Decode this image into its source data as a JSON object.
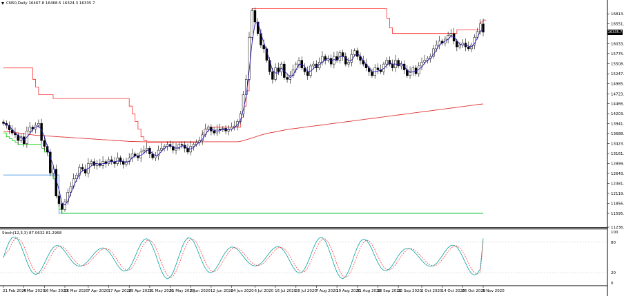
{
  "chart_window": {
    "symbol_line": "CN50,Daily  16467.8 16468.5 16324.3 16335.7",
    "menu_icon": "triangle-down-icon"
  },
  "indicator": {
    "label": "Stoch(12,3,3) 87.0632 81.2968"
  },
  "colors": {
    "background": "#ffffff",
    "candle": "#000000",
    "price_line": "#2a1bb3",
    "donchian_upper": "#ff2a2a",
    "donchian_lower": "#00d000",
    "long_channel": "#3a8fe0",
    "moving_average": "#e03030",
    "stoch_main": "#00a0a0",
    "stoch_signal": "#ff4040",
    "level_line": "#c8c8c8",
    "separator": "#000000"
  },
  "chart_data": {
    "type": "candlestick",
    "title": "CN50,Daily",
    "ohlc_header": {
      "open": 16467.8,
      "high": 16468.5,
      "low": 16324.3,
      "close": 16335.7
    },
    "ylim": [
      11236.5,
      17140
    ],
    "y_ticks": [
      "16813.5",
      "16551.5",
      "16033.5",
      "15775.5",
      "15508.5",
      "15247.5",
      "14985.5",
      "14723.5",
      "14466.5",
      "14203.5",
      "13941.5",
      "13688.5",
      "13423.5",
      "13161.5",
      "12899.5",
      "12643.5",
      "12381.5",
      "12119.5",
      "11856.5",
      "11595.5",
      "11236.5"
    ],
    "current_price_label": "16335.7",
    "x_labels": [
      "21 Feb 2020",
      "4 Mar 2020",
      "16 Mar 2020",
      "26 Mar 2020",
      "7 Apr 2020",
      "17 Apr 2020",
      "29 Apr 2020",
      "11 May 2020",
      "21 May 2020",
      "2 Jun 2020",
      "12 Jun 2020",
      "24 Jun 2020",
      "6 Jul 2020",
      "16 Jul 2020",
      "28 Jul 2020",
      "7 Aug 2020",
      "19 Aug 2020",
      "31 Aug 2020",
      "10 Sep 2020",
      "22 Sep 2020",
      "2 Oct 2020",
      "14 Oct 2020",
      "26 Oct 2020",
      "5 Nov 2020"
    ],
    "closes": [
      13950,
      13900,
      13780,
      13700,
      13650,
      13500,
      13600,
      13420,
      13750,
      13850,
      13800,
      13900,
      13950,
      13500,
      13350,
      13200,
      12650,
      12750,
      12050,
      11850,
      11700,
      11900,
      12150,
      12300,
      12500,
      12600,
      12800,
      12750,
      12650,
      12900,
      12950,
      12850,
      12900,
      12850,
      12950,
      12900,
      13000,
      12950,
      12900,
      13050,
      12950,
      12880,
      12950,
      13050,
      13150,
      13100,
      13050,
      13200,
      13250,
      13300,
      13150,
      13050,
      13100,
      13250,
      13300,
      13350,
      13400,
      13350,
      13250,
      13300,
      13400,
      13380,
      13300,
      13200,
      13350,
      13400,
      13450,
      13500,
      13650,
      13800,
      13850,
      13750,
      13700,
      13800,
      13780,
      13820,
      13750,
      13800,
      13850,
      13880,
      14000,
      14200,
      14700,
      15100,
      16200,
      16900,
      16600,
      16300,
      16000,
      15900,
      15600,
      15300,
      15100,
      15400,
      15300,
      15500,
      15150,
      15100,
      15200,
      15350,
      15500,
      15600,
      15400,
      15300,
      15200,
      15450,
      15500,
      15400,
      15550,
      15700,
      15600,
      15650,
      15500,
      15700,
      15600,
      15800,
      15700,
      15500,
      15550,
      15750,
      15850,
      15700,
      15600,
      15500,
      15400,
      15300,
      15200,
      15400,
      15350,
      15300,
      15500,
      15600,
      15500,
      15400,
      15600,
      15450,
      15500,
      15350,
      15200,
      15300,
      15400,
      15250,
      15450,
      15550,
      15600,
      15650,
      15700,
      15900,
      16000,
      16100,
      16050,
      16150,
      16250,
      16300,
      16100,
      15950,
      16000,
      16050,
      15950,
      15900,
      16000,
      16200,
      16350,
      16550,
      16335.7
    ],
    "donchian_upper": [
      15400,
      15400,
      15400,
      15400,
      15400,
      15400,
      15400,
      15400,
      15400,
      15400,
      15100,
      14900,
      14700,
      14700,
      14700,
      14700,
      14700,
      14600,
      14600,
      14600,
      14600,
      14600,
      14600,
      14600,
      14600,
      14600,
      14600,
      14600,
      14600,
      14600,
      14600,
      14600,
      14600,
      14600,
      14600,
      14600,
      14600,
      14600,
      14600,
      14600,
      14600,
      14600,
      14600,
      14400,
      14200,
      14000,
      13800,
      13600,
      13500,
      13450,
      13450,
      13450,
      13450,
      13450,
      13450,
      13450,
      13450,
      13450,
      13450,
      13450,
      13450,
      13450,
      13450,
      13450,
      13450,
      13450,
      13450,
      13500,
      13700,
      13800,
      13850,
      13850,
      13850,
      13850,
      13850,
      13850,
      13850,
      13850,
      13850,
      13850,
      13850,
      14100,
      14400,
      14800,
      16200,
      16950,
      16950,
      16950,
      16950,
      16950,
      16950,
      16950,
      16950,
      16950,
      16950,
      16950,
      16950,
      16950,
      16950,
      16950,
      16950,
      16950,
      16950,
      16950,
      16950,
      16950,
      16950,
      16950,
      16950,
      16950,
      16950,
      16950,
      16950,
      16950,
      16950,
      16950,
      16950,
      16950,
      16950,
      16950,
      16950,
      16950,
      16950,
      16950,
      16950,
      16950,
      16950,
      16950,
      16950,
      16950,
      16950,
      16700,
      16450,
      16300,
      16300,
      16300,
      16300,
      16300,
      16300,
      16300,
      16300,
      16300,
      16300,
      16300,
      16300,
      16300,
      16300,
      16300,
      16300,
      16300,
      16300,
      16300,
      16300,
      16300,
      16300,
      16400,
      16400,
      16400,
      16400,
      16400,
      16400,
      16400,
      16400,
      16600,
      16650,
      16650
    ],
    "donchian_lower": [
      13700,
      13600,
      13550,
      13500,
      13450,
      13400,
      13400,
      13400,
      13400,
      13400,
      13400,
      13400,
      13400,
      13300,
      13200,
      13100,
      12700,
      12500,
      12050,
      11700,
      11600,
      11600,
      11600,
      11600,
      11600,
      11600,
      11600,
      11600,
      11600,
      11600,
      11600,
      11600,
      11600,
      11600,
      11600,
      11600,
      11600,
      11600,
      11600,
      11600,
      11600,
      11600,
      11600,
      11600,
      11600,
      11600,
      11600,
      11600,
      11600,
      11600,
      11600,
      11600,
      11600,
      11600,
      11600,
      11600,
      11600,
      11600,
      11600,
      11600,
      11600,
      11600,
      11600,
      11600,
      11600,
      11600,
      11600,
      11600,
      11600,
      11600,
      11600,
      11600,
      11600,
      11600,
      11600,
      11600,
      11600,
      11600,
      11600,
      11600,
      11600,
      11600,
      11600,
      11600,
      11600,
      11600,
      11600,
      11600,
      11600,
      11600,
      11600,
      11600,
      11600,
      11600,
      11600,
      11600,
      11600,
      11600,
      11600,
      11600,
      11600,
      11600,
      11600,
      11600,
      11600,
      11600,
      11600,
      11600,
      11600,
      11600,
      11600,
      11600,
      11600,
      11600,
      11600,
      11600,
      11600,
      11600,
      11600,
      11600,
      11600,
      11600,
      11600,
      11600,
      11600,
      11600,
      11600,
      11600,
      11600,
      11600,
      11600,
      11600,
      11600,
      11600,
      11600,
      11600,
      11600,
      11600,
      11600,
      11600,
      11600,
      11600,
      11600,
      11600,
      11600,
      11600,
      11600,
      11600,
      11600,
      11600,
      11600,
      11600,
      11600,
      11600,
      11600,
      11600,
      11600,
      11600,
      11600,
      11600,
      11600,
      11600,
      11600,
      11600,
      11600
    ],
    "long_channel": [
      12600,
      12600,
      12600,
      12600,
      12600,
      12600,
      12600,
      12600,
      12600,
      12600,
      12600,
      12600,
      12600,
      12600,
      12600,
      12600,
      12600,
      12600,
      12600,
      11600,
      11600,
      11600,
      11600,
      11600,
      11600,
      11600,
      11600,
      11600,
      11600,
      11600,
      11600,
      11600,
      11600,
      11600,
      11600,
      11600,
      11600,
      11600,
      11600,
      11600,
      11600,
      11600,
      11600,
      11600,
      11600,
      11600,
      11600,
      11600,
      11600,
      11600,
      11600,
      11600,
      11600,
      11600,
      11600,
      11600,
      11600,
      11600,
      11600,
      11600,
      11600,
      11600,
      11600,
      11600,
      11600,
      11600,
      11600,
      11600,
      11600,
      11600,
      11600,
      11600,
      11600,
      11600,
      11600,
      11600,
      11600,
      11600,
      11600,
      11600,
      11600,
      11600,
      11600,
      11600,
      11600,
      11600,
      11600,
      11600,
      11600,
      11600,
      11600,
      11600,
      11600,
      11600,
      11600,
      11600,
      11600,
      11600,
      11600,
      11600,
      11600,
      11600,
      11600,
      11600,
      11600,
      11600,
      11600,
      11600,
      11600,
      11600,
      11600,
      11600,
      11600,
      11600,
      11600,
      11600,
      11600,
      11600,
      11600,
      11600,
      11600,
      11600,
      11600,
      11600,
      11600,
      11600,
      11600,
      11600,
      11600,
      11600,
      11600,
      11600,
      11600,
      11600,
      11600,
      11600,
      11600,
      11600,
      11600,
      11600,
      11600,
      11600,
      11600,
      11600,
      11600,
      11600,
      11600,
      11600,
      11600,
      11600,
      11600,
      11600,
      11600,
      11600,
      11600,
      11600,
      11600,
      11600,
      11600,
      11600,
      11600,
      11600,
      11600,
      11600,
      11600
    ],
    "moving_average": [
      13750,
      13740,
      13730,
      13720,
      13710,
      13700,
      13690,
      13680,
      13670,
      13660,
      13650,
      13640,
      13635,
      13630,
      13625,
      13620,
      13615,
      13610,
      13605,
      13600,
      13595,
      13590,
      13585,
      13580,
      13575,
      13570,
      13565,
      13560,
      13555,
      13550,
      13545,
      13540,
      13535,
      13530,
      13525,
      13520,
      13515,
      13510,
      13505,
      13500,
      13495,
      13490,
      13485,
      13480,
      13478,
      13476,
      13474,
      13472,
      13470,
      13470,
      13470,
      13470,
      13470,
      13470,
      13470,
      13470,
      13470,
      13470,
      13470,
      13470,
      13470,
      13470,
      13470,
      13470,
      13470,
      13470,
      13470,
      13470,
      13470,
      13470,
      13470,
      13470,
      13470,
      13470,
      13470,
      13470,
      13470,
      13470,
      13470,
      13470,
      13470,
      13480,
      13500,
      13520,
      13545,
      13570,
      13595,
      13620,
      13645,
      13665,
      13685,
      13700,
      13715,
      13730,
      13745,
      13760,
      13775,
      13790,
      13800,
      13810,
      13820,
      13830,
      13840,
      13850,
      13860,
      13870,
      13880,
      13890,
      13900,
      13910,
      13920,
      13930,
      13940,
      13950,
      13960,
      13970,
      13980,
      13990,
      14000,
      14010,
      14020,
      14030,
      14040,
      14050,
      14060,
      14070,
      14080,
      14090,
      14100,
      14110,
      14120,
      14130,
      14140,
      14150,
      14160,
      14170,
      14180,
      14190,
      14200,
      14210,
      14220,
      14230,
      14240,
      14250,
      14260,
      14270,
      14280,
      14290,
      14300,
      14310,
      14320,
      14330,
      14340,
      14350,
      14360,
      14370,
      14380,
      14390,
      14400,
      14410,
      14420,
      14430,
      14440,
      14450,
      14460
    ],
    "stoch": {
      "label": "Stoch(12,3,3)",
      "main": 87.0632,
      "signal": 81.2968,
      "levels": [
        80,
        20
      ],
      "ylim": [
        0,
        100
      ],
      "y_ticks": [
        "100",
        "80",
        "20",
        "0"
      ]
    }
  }
}
